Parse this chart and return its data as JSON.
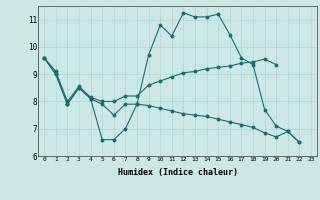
{
  "title": "",
  "xlabel": "Humidex (Indice chaleur)",
  "ylabel": "",
  "background_color": "#cde8e4",
  "line_color": "#1a6e6e",
  "xlim": [
    -0.5,
    23.5
  ],
  "ylim": [
    6,
    11.5
  ],
  "yticks": [
    6,
    7,
    8,
    9,
    10,
    11
  ],
  "xticks": [
    0,
    1,
    2,
    3,
    4,
    5,
    6,
    7,
    8,
    9,
    10,
    11,
    12,
    13,
    14,
    15,
    16,
    17,
    18,
    19,
    20,
    21,
    22,
    23
  ],
  "lines": [
    {
      "x": [
        0,
        1,
        2,
        3,
        4,
        5,
        6,
        7,
        8,
        9,
        10,
        11,
        12,
        13,
        14,
        15,
        16,
        17,
        18,
        19,
        20,
        21,
        22
      ],
      "y": [
        9.6,
        9.0,
        7.9,
        8.5,
        8.1,
        6.6,
        6.6,
        7.0,
        7.9,
        9.7,
        10.8,
        10.4,
        11.25,
        11.1,
        11.1,
        11.2,
        10.45,
        9.6,
        9.35,
        7.7,
        7.1,
        6.9,
        6.5
      ]
    },
    {
      "x": [
        0,
        1,
        2,
        3,
        4,
        5,
        6,
        7,
        8,
        9,
        10,
        11,
        12,
        13,
        14,
        15,
        16,
        17,
        18,
        19,
        20
      ],
      "y": [
        9.6,
        9.1,
        8.0,
        8.55,
        8.15,
        8.0,
        8.0,
        8.2,
        8.2,
        8.6,
        8.75,
        8.9,
        9.05,
        9.1,
        9.2,
        9.25,
        9.3,
        9.4,
        9.45,
        9.55,
        9.35
      ]
    },
    {
      "x": [
        0,
        1,
        2,
        3,
        4,
        5,
        6,
        7,
        8,
        9,
        10,
        11,
        12,
        13,
        14,
        15,
        16,
        17,
        18,
        19,
        20,
        21,
        22,
        23
      ],
      "y": [
        9.6,
        9.0,
        7.9,
        8.5,
        8.1,
        7.9,
        7.5,
        7.9,
        7.9,
        7.85,
        7.75,
        7.65,
        7.55,
        7.5,
        7.45,
        7.35,
        7.25,
        7.15,
        7.05,
        6.85,
        6.7,
        6.9,
        6.5,
        null
      ]
    }
  ]
}
